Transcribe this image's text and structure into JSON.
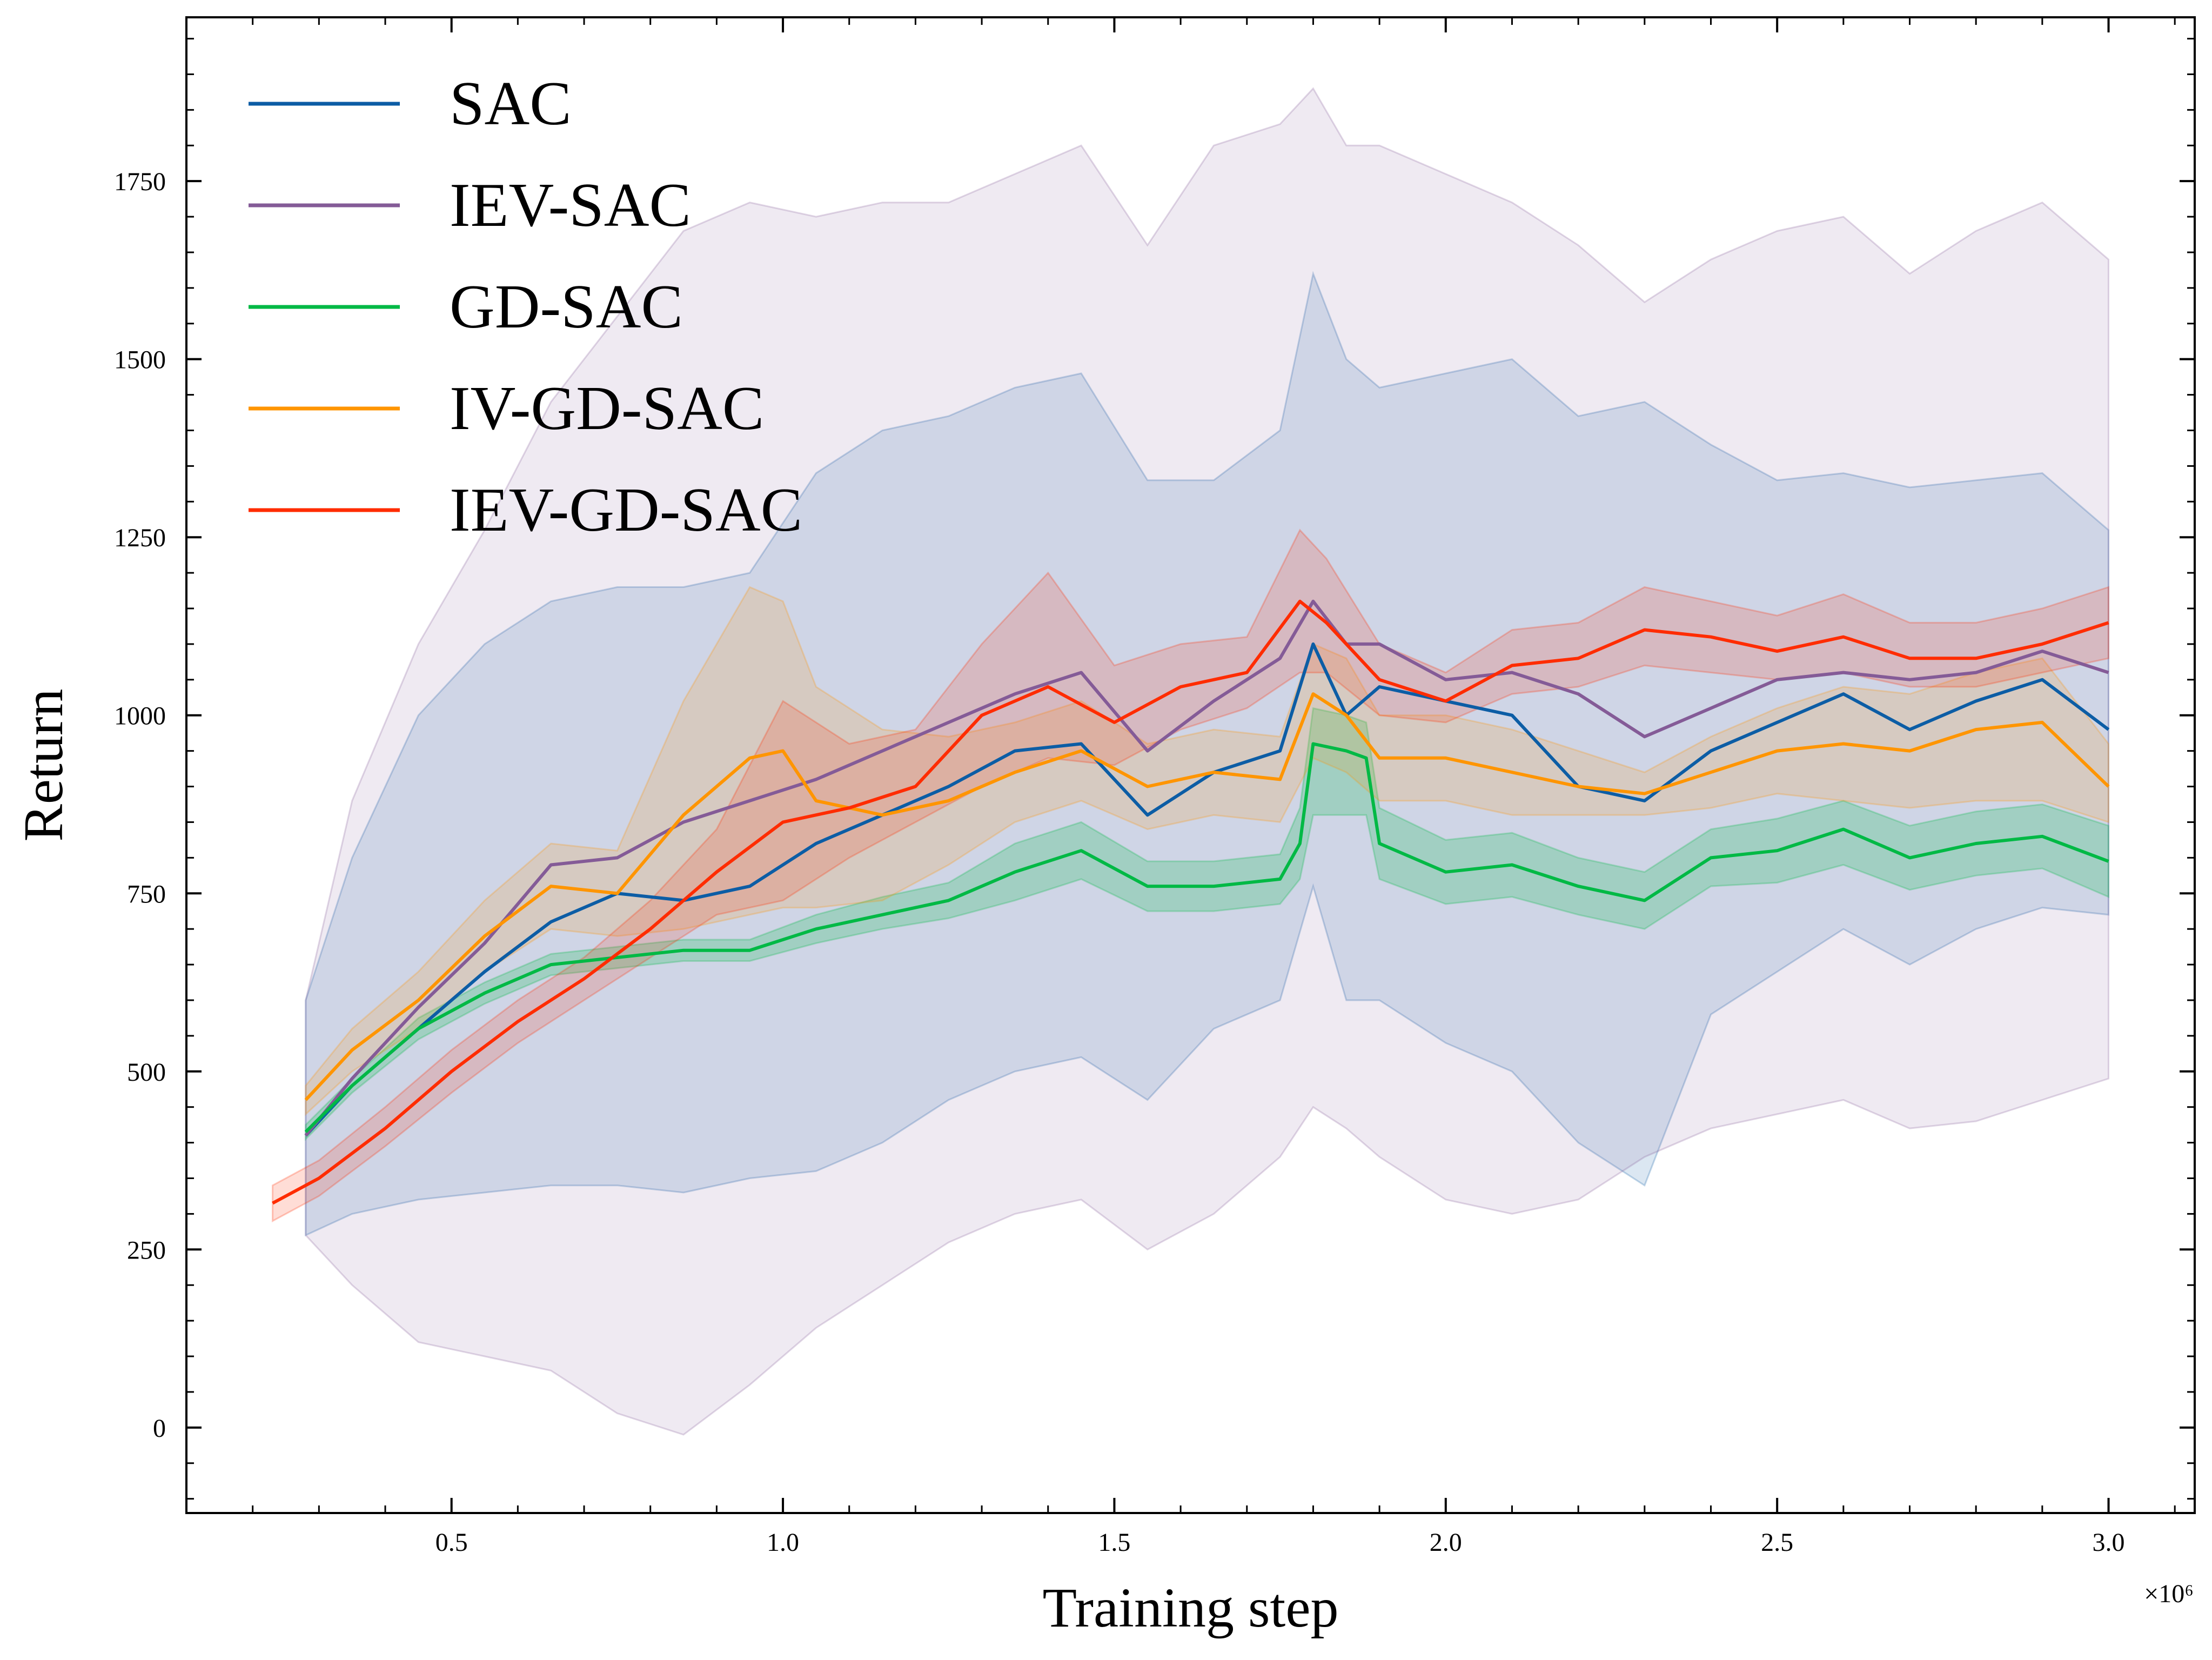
{
  "chart_data": {
    "type": "line",
    "title": "",
    "xlabel": "Training step",
    "ylabel": "Return",
    "x_offset_label": "×10⁶",
    "x_unit_scale": 1000000,
    "xlim": [
      0.1,
      3.13
    ],
    "ylim": [
      -120,
      1980
    ],
    "x_ticks": [
      0.5,
      1.0,
      1.5,
      2.0,
      2.5,
      3.0
    ],
    "x_tick_labels": [
      "0.5",
      "1.0",
      "1.5",
      "2.0",
      "2.5",
      "3.0"
    ],
    "y_ticks": [
      0,
      250,
      500,
      750,
      1000,
      1250,
      1500,
      1750
    ],
    "y_tick_labels": [
      "0",
      "250",
      "500",
      "750",
      "1000",
      "1250",
      "1500",
      "1750"
    ],
    "legend_position": "top-left",
    "grid": false,
    "series": [
      {
        "name": "SAC",
        "color": "#0c5da5",
        "band_opacity": 0.15,
        "x": [
          0.28,
          0.35,
          0.45,
          0.55,
          0.65,
          0.75,
          0.85,
          0.95,
          1.05,
          1.15,
          1.25,
          1.35,
          1.45,
          1.55,
          1.65,
          1.75,
          1.8,
          1.85,
          1.9,
          2.0,
          2.1,
          2.2,
          2.3,
          2.4,
          2.5,
          2.6,
          2.7,
          2.8,
          2.9,
          3.0
        ],
        "values": [
          410,
          480,
          560,
          640,
          710,
          750,
          740,
          760,
          820,
          860,
          900,
          950,
          960,
          860,
          920,
          950,
          1100,
          1000,
          1040,
          1020,
          1000,
          900,
          880,
          950,
          990,
          1030,
          980,
          1020,
          1050,
          980
        ],
        "lower": [
          270,
          300,
          320,
          330,
          340,
          340,
          330,
          350,
          360,
          400,
          460,
          500,
          520,
          460,
          560,
          600,
          760,
          600,
          600,
          540,
          500,
          400,
          340,
          580,
          640,
          700,
          650,
          700,
          730,
          720
        ],
        "upper": [
          600,
          800,
          1000,
          1100,
          1160,
          1180,
          1180,
          1200,
          1340,
          1400,
          1420,
          1460,
          1480,
          1330,
          1330,
          1400,
          1620,
          1500,
          1460,
          1480,
          1500,
          1420,
          1440,
          1380,
          1330,
          1340,
          1320,
          1330,
          1340,
          1260
        ]
      },
      {
        "name": "IEV-SAC",
        "color": "#845b97",
        "band_opacity": 0.13,
        "x": [
          0.28,
          0.35,
          0.45,
          0.55,
          0.65,
          0.75,
          0.85,
          0.95,
          1.05,
          1.15,
          1.25,
          1.35,
          1.45,
          1.55,
          1.65,
          1.75,
          1.8,
          1.85,
          1.9,
          2.0,
          2.1,
          2.2,
          2.3,
          2.4,
          2.5,
          2.6,
          2.7,
          2.8,
          2.9,
          3.0
        ],
        "values": [
          410,
          490,
          590,
          680,
          790,
          800,
          850,
          880,
          910,
          950,
          990,
          1030,
          1060,
          950,
          1020,
          1080,
          1160,
          1100,
          1100,
          1050,
          1060,
          1030,
          970,
          1010,
          1050,
          1060,
          1050,
          1060,
          1090,
          1060
        ],
        "lower": [
          270,
          200,
          120,
          100,
          80,
          20,
          -10,
          60,
          140,
          200,
          260,
          300,
          320,
          250,
          300,
          380,
          450,
          420,
          380,
          320,
          300,
          320,
          380,
          420,
          440,
          460,
          420,
          430,
          460,
          490
        ],
        "upper": [
          600,
          880,
          1100,
          1260,
          1440,
          1560,
          1680,
          1720,
          1700,
          1720,
          1720,
          1760,
          1800,
          1660,
          1800,
          1830,
          1880,
          1800,
          1800,
          1760,
          1720,
          1660,
          1580,
          1640,
          1680,
          1700,
          1620,
          1680,
          1720,
          1640
        ]
      },
      {
        "name": "GD-SAC",
        "color": "#00b945",
        "band_opacity": 0.22,
        "x": [
          0.28,
          0.35,
          0.45,
          0.55,
          0.65,
          0.75,
          0.85,
          0.95,
          1.05,
          1.15,
          1.25,
          1.35,
          1.45,
          1.55,
          1.65,
          1.75,
          1.78,
          1.8,
          1.85,
          1.88,
          1.9,
          2.0,
          2.1,
          2.2,
          2.3,
          2.4,
          2.5,
          2.6,
          2.7,
          2.8,
          2.9,
          3.0
        ],
        "values": [
          415,
          480,
          560,
          610,
          650,
          660,
          670,
          670,
          700,
          720,
          740,
          780,
          810,
          760,
          760,
          770,
          820,
          960,
          950,
          940,
          820,
          780,
          790,
          760,
          740,
          800,
          810,
          840,
          800,
          820,
          830,
          795
        ],
        "lower": [
          405,
          470,
          545,
          595,
          635,
          645,
          655,
          655,
          680,
          700,
          715,
          740,
          770,
          725,
          725,
          735,
          770,
          860,
          860,
          860,
          770,
          735,
          745,
          720,
          700,
          760,
          765,
          790,
          755,
          775,
          785,
          745
        ],
        "upper": [
          425,
          490,
          575,
          625,
          665,
          675,
          685,
          685,
          720,
          745,
          765,
          820,
          850,
          795,
          795,
          805,
          870,
          1010,
          1000,
          990,
          870,
          825,
          835,
          800,
          780,
          840,
          855,
          880,
          845,
          865,
          875,
          845
        ]
      },
      {
        "name": "IV-GD-SAC",
        "color": "#ff9500",
        "band_opacity": 0.16,
        "x": [
          0.28,
          0.35,
          0.45,
          0.55,
          0.65,
          0.75,
          0.85,
          0.95,
          1.0,
          1.05,
          1.15,
          1.25,
          1.35,
          1.45,
          1.55,
          1.65,
          1.75,
          1.8,
          1.85,
          1.9,
          2.0,
          2.1,
          2.2,
          2.3,
          2.4,
          2.5,
          2.6,
          2.7,
          2.8,
          2.9,
          3.0
        ],
        "values": [
          460,
          530,
          600,
          690,
          760,
          750,
          860,
          940,
          950,
          880,
          860,
          880,
          920,
          950,
          900,
          920,
          910,
          1030,
          1000,
          940,
          940,
          920,
          900,
          890,
          920,
          950,
          960,
          950,
          980,
          990,
          900
        ],
        "lower": [
          440,
          500,
          560,
          640,
          700,
          690,
          700,
          720,
          730,
          730,
          740,
          790,
          850,
          880,
          840,
          860,
          850,
          940,
          920,
          880,
          880,
          860,
          860,
          860,
          870,
          890,
          880,
          870,
          880,
          880,
          850
        ],
        "upper": [
          480,
          560,
          640,
          740,
          820,
          810,
          1020,
          1180,
          1160,
          1040,
          980,
          970,
          990,
          1020,
          960,
          980,
          970,
          1100,
          1080,
          1000,
          1000,
          980,
          950,
          920,
          970,
          1010,
          1040,
          1030,
          1060,
          1080,
          960
        ]
      },
      {
        "name": "IEV-GD-SAC",
        "color": "#ff2c00",
        "band_opacity": 0.16,
        "x": [
          0.23,
          0.3,
          0.4,
          0.5,
          0.6,
          0.7,
          0.8,
          0.9,
          1.0,
          1.1,
          1.2,
          1.3,
          1.4,
          1.5,
          1.6,
          1.7,
          1.78,
          1.82,
          1.9,
          2.0,
          2.1,
          2.2,
          2.3,
          2.4,
          2.5,
          2.6,
          2.7,
          2.8,
          2.9,
          3.0
        ],
        "values": [
          315,
          350,
          420,
          500,
          570,
          630,
          700,
          780,
          850,
          870,
          900,
          1000,
          1040,
          990,
          1040,
          1060,
          1160,
          1130,
          1050,
          1020,
          1070,
          1080,
          1120,
          1110,
          1090,
          1110,
          1080,
          1080,
          1100,
          1130
        ],
        "lower": [
          290,
          325,
          395,
          470,
          540,
          600,
          660,
          720,
          740,
          800,
          850,
          900,
          940,
          930,
          980,
          1010,
          1060,
          1060,
          1000,
          990,
          1030,
          1040,
          1070,
          1060,
          1050,
          1060,
          1040,
          1040,
          1060,
          1080
        ],
        "upper": [
          340,
          375,
          450,
          530,
          600,
          660,
          740,
          840,
          1020,
          960,
          980,
          1100,
          1200,
          1070,
          1100,
          1110,
          1260,
          1220,
          1100,
          1060,
          1120,
          1130,
          1180,
          1160,
          1140,
          1170,
          1130,
          1130,
          1150,
          1180
        ]
      }
    ]
  }
}
